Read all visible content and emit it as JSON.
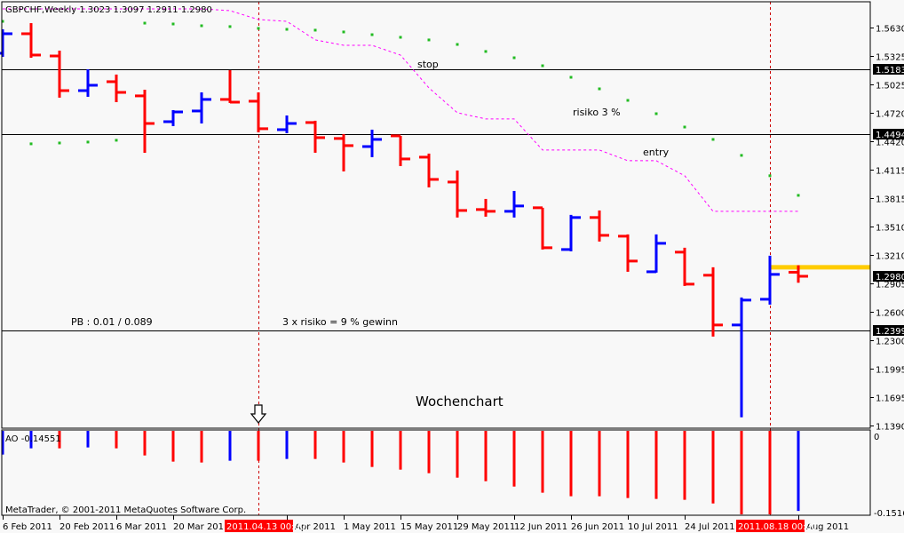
{
  "window": {
    "title": "GBPCHF,Weekly  1.3023 1.3097 1.2911 1.2980",
    "copyright": "MetaTrader, © 2001-2011 MetaQuotes Software Corp."
  },
  "annotations": {
    "stop": "stop",
    "risk": "risiko 3 %",
    "entry": "entry",
    "pb": "PB : 0.01 / 0.089",
    "gain": "3 x risiko = 9 % gewinn",
    "chart_label": "Wochenchart"
  },
  "colors": {
    "up": "#0000ff",
    "down": "#ff0000",
    "sar": "#22bb22",
    "ma_line": "#ff00ff",
    "level_line": "#000000",
    "highlight_level": "#ffcc00",
    "background": "#f8f8f8",
    "date_marker": "#ff0000"
  },
  "icons": {
    "arrow": "hollow-down-arrow-icon"
  },
  "chart_data": [
    {
      "type": "ohlc",
      "symbol": "GBPCHF",
      "timeframe": "Weekly",
      "ylim": [
        1.139,
        1.5923
      ],
      "grid": false,
      "y_ticks": [
        "1.5630",
        "1.5325",
        "1.5025",
        "1.4720",
        "1.4420",
        "1.4115",
        "1.3815",
        "1.3510",
        "1.3210",
        "1.2905",
        "1.2600",
        "1.2300",
        "1.1995",
        "1.1695",
        "1.1390"
      ],
      "dates": [
        "2011-02-06",
        "2011-02-13",
        "2011-02-20",
        "2011-02-27",
        "2011-03-06",
        "2011-03-13",
        "2011-03-20",
        "2011-03-27",
        "2011-04-03",
        "2011-04-10",
        "2011-04-17",
        "2011-04-24",
        "2011-05-01",
        "2011-05-08",
        "2011-05-15",
        "2011-05-22",
        "2011-05-29",
        "2011-06-05",
        "2011-06-12",
        "2011-06-19",
        "2011-06-26",
        "2011-07-03",
        "2011-07-10",
        "2011-07-17",
        "2011-07-24",
        "2011-07-31",
        "2011-08-07",
        "2011-08-14",
        "2011-08-21"
      ],
      "ohlc": [
        [
          1.5356,
          1.5611,
          1.5318,
          1.5564
        ],
        [
          1.5564,
          1.5677,
          1.5308,
          1.5337
        ],
        [
          1.5327,
          1.5384,
          1.4883,
          1.4958
        ],
        [
          1.4958,
          1.5185,
          1.4892,
          1.5015
        ],
        [
          1.5053,
          1.5129,
          1.4835,
          1.4939
        ],
        [
          1.4902,
          1.4968,
          1.4296,
          1.4608
        ],
        [
          1.4627,
          1.475,
          1.458,
          1.4731
        ],
        [
          1.4741,
          1.4939,
          1.4608,
          1.4864
        ],
        [
          1.4864,
          1.5176,
          1.4826,
          1.4835
        ],
        [
          1.4845,
          1.4939,
          1.4514,
          1.4552
        ],
        [
          1.4542,
          1.4693,
          1.4504,
          1.4608
        ],
        [
          1.4618,
          1.4637,
          1.4296,
          1.4457
        ],
        [
          1.4448,
          1.4495,
          1.4097,
          1.4372
        ],
        [
          1.4362,
          1.4542,
          1.4249,
          1.4438
        ],
        [
          1.4476,
          1.4476,
          1.4154,
          1.423
        ],
        [
          1.4249,
          1.4287,
          1.3927,
          1.4012
        ],
        [
          1.3984,
          1.4107,
          1.3606,
          1.3681
        ],
        [
          1.3691,
          1.3804,
          1.3615,
          1.3672
        ],
        [
          1.3672,
          1.3889,
          1.3606,
          1.3729
        ],
        [
          1.371,
          1.371,
          1.3265,
          1.3284
        ],
        [
          1.3265,
          1.3634,
          1.3246,
          1.3606
        ],
        [
          1.3606,
          1.3681,
          1.335,
          1.3416
        ],
        [
          1.3407,
          1.3426,
          1.3028,
          1.3142
        ],
        [
          1.3028,
          1.3426,
          1.3019,
          1.3331
        ],
        [
          1.3237,
          1.3284,
          1.2877,
          1.2896
        ],
        [
          1.2991,
          1.3076,
          1.2338,
          1.2461
        ],
        [
          1.2461,
          1.2754,
          1.1477,
          1.2726
        ],
        [
          1.2735,
          1.3199,
          1.2678,
          1.3
        ],
        [
          1.3023,
          1.3097,
          1.2911,
          1.298
        ]
      ],
      "parabolic_sar": [
        1.5696,
        1.4391,
        1.44,
        1.441,
        1.4429,
        1.5677,
        1.5668,
        1.5649,
        1.564,
        1.5621,
        1.5611,
        1.5602,
        1.5583,
        1.5554,
        1.5526,
        1.5498,
        1.545,
        1.5375,
        1.5308,
        1.5223,
        1.51,
        1.4977,
        1.4854,
        1.4712,
        1.457,
        1.4438,
        1.4268,
        1.4051,
        1.3842
      ],
      "ma_line": [
        1.5829,
        1.5829,
        1.5829,
        1.5829,
        1.5829,
        1.5829,
        1.5829,
        1.5829,
        1.581,
        1.5715,
        1.5696,
        1.5498,
        1.5441,
        1.5441,
        1.5337,
        1.4987,
        1.4722,
        1.4656,
        1.4656,
        1.4325,
        1.4325,
        1.4325,
        1.4211,
        1.4211,
        1.4051,
        1.3672,
        1.3672,
        1.3672,
        1.3672
      ],
      "horizontal_levels": [
        {
          "price": "1.5183",
          "label": "1.5183"
        },
        {
          "price": "1.4494",
          "label": "1.4494"
        },
        {
          "price": "1.2399",
          "label": "1.2399"
        }
      ],
      "highlight_level": {
        "price": 1.3076,
        "from_date": "2011-08-14"
      },
      "current_price_label": "1.2980",
      "x_ticks": [
        {
          "label": "6 Feb 2011",
          "date": "2011-02-06"
        },
        {
          "label": "20 Feb 2011",
          "date": "2011-02-20"
        },
        {
          "label": "6 Mar 2011",
          "date": "2011-03-06"
        },
        {
          "label": "20 Mar 2011",
          "date": "2011-03-20"
        },
        {
          "label": "Apr 2011",
          "date": "2011-04-17"
        },
        {
          "label": "1 May 2011",
          "date": "2011-05-01"
        },
        {
          "label": "15 May 2011",
          "date": "2011-05-15"
        },
        {
          "label": "29 May 2011",
          "date": "2011-05-29"
        },
        {
          "label": "12 Jun 2011",
          "date": "2011-06-12"
        },
        {
          "label": "26 Jun 2011",
          "date": "2011-06-26"
        },
        {
          "label": "10 Jul 2011",
          "date": "2011-07-10"
        },
        {
          "label": "24 Jul 2011",
          "date": "2011-07-24"
        },
        {
          "label": "Aug 2011",
          "date": "2011-08-21"
        }
      ],
      "date_markers": [
        {
          "label": "2011.04.13 00:00",
          "date": "2011-04-10"
        },
        {
          "label": "2011.08.18 00:00",
          "date": "2011-08-14"
        }
      ]
    },
    {
      "type": "bar",
      "indicator": "AO",
      "title": "AO -0.14551",
      "y_ticks": [
        "0",
        "-0.15165"
      ],
      "ylim": [
        -0.15165,
        0
      ],
      "values": [
        -0.0442,
        -0.033,
        -0.033,
        -0.0314,
        -0.033,
        -0.0458,
        -0.0569,
        -0.0585,
        -0.0553,
        -0.0553,
        -0.0521,
        -0.0521,
        -0.0585,
        -0.0665,
        -0.0713,
        -0.0777,
        -0.0857,
        -0.0921,
        -0.1017,
        -0.1128,
        -0.1192,
        -0.1192,
        -0.1224,
        -0.124,
        -0.1256,
        -0.132,
        -0.1516,
        -0.1516,
        -0.14551
      ],
      "colors": [
        "up",
        "up",
        "down",
        "up",
        "down",
        "down",
        "down",
        "down",
        "up",
        "down",
        "up",
        "down",
        "down",
        "down",
        "down",
        "down",
        "down",
        "down",
        "down",
        "down",
        "down",
        "down",
        "down",
        "down",
        "down",
        "down",
        "down",
        "down",
        "up"
      ]
    }
  ]
}
